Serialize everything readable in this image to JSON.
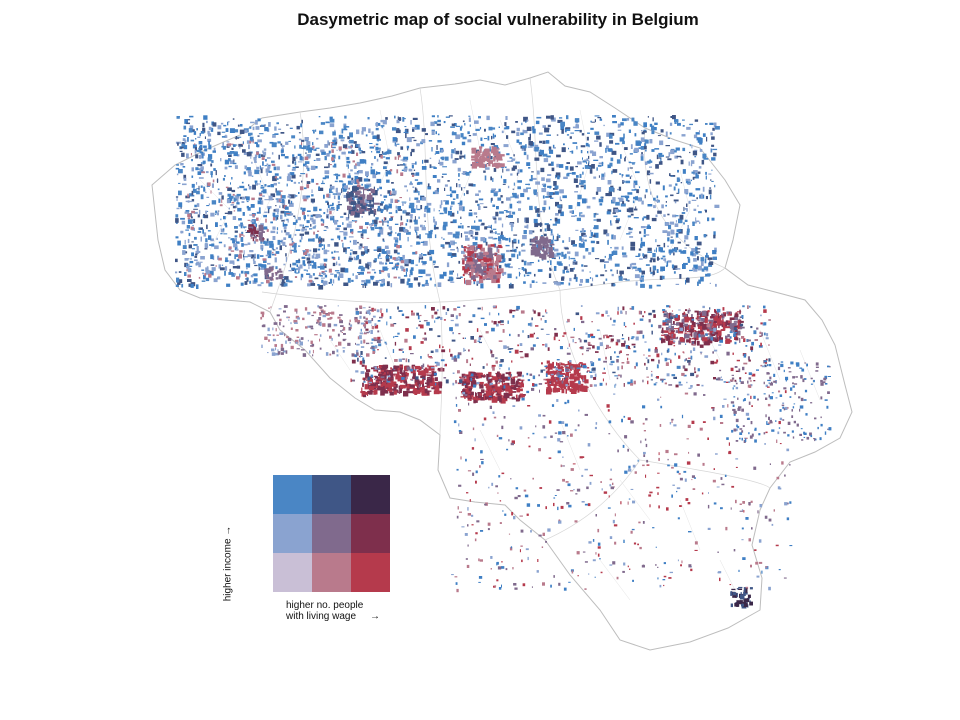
{
  "title": "Dasymetric map of social vulnerability in Belgium",
  "legend": {
    "y_label": "higher income →",
    "x_label_line1": "higher no. people",
    "x_label_line2": "with living wage",
    "x_arrow": "→",
    "grid": [
      [
        "#c9bfd6",
        "#b97a8c",
        "#b53a4c"
      ],
      [
        "#8aa3d0",
        "#806a8d",
        "#7e2f4c"
      ],
      [
        "#4a86c5",
        "#3f5686",
        "#3a2748"
      ]
    ]
  },
  "colors": {
    "border": "#bdbdbd",
    "high_income_low_wage": "#3f7fc4",
    "mid_blue": "#8aa3d0",
    "low_income_high_wage": "#b53a4c",
    "mid_purple": "#806a8d"
  }
}
